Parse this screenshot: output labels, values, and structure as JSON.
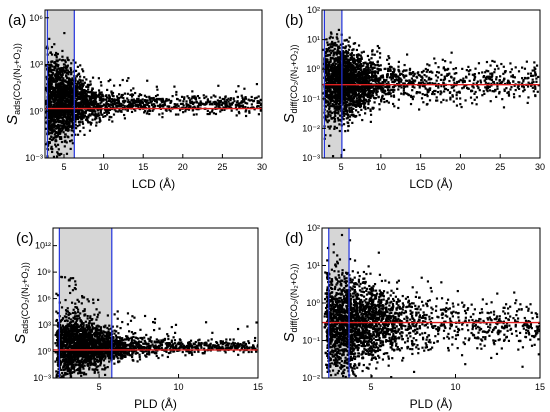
{
  "chart_data": [
    {
      "panel_label": "(a)",
      "type": "scatter",
      "xlabel": "LCD (Å)",
      "ylabel_main": "S",
      "ylabel_sub": "ads(CO₂/(N₂+O₂))",
      "x_scale": "linear",
      "y_scale": "log",
      "xlim": [
        2.6,
        30
      ],
      "ylim_log10": [
        -3,
        6.5
      ],
      "x_ticks": [
        5,
        10,
        15,
        20,
        25,
        30
      ],
      "x_tick_labels": [
        "5",
        "10",
        "15",
        "20",
        "25",
        "30"
      ],
      "y_ticks_log10": [
        -3,
        0,
        3,
        6
      ],
      "y_tick_labels": [
        "10⁻³",
        "10⁰",
        "10³",
        "10⁶"
      ],
      "shaded_region_x": [
        2.9,
        6.3
      ],
      "vertical_lines_x": [
        2.9,
        6.3
      ],
      "reference_line_y": 1.5,
      "scatter_shape": {
        "peak_x": 3.8,
        "spread_x": 2.6,
        "x_max": 30,
        "baseline_log10": 0.55,
        "baseline_slope": -0.005,
        "spread_near": 1.5,
        "spread_far": 0.28,
        "upper_tail_max_log10": 4.6,
        "n_points": 2600
      }
    },
    {
      "panel_label": "(b)",
      "type": "scatter",
      "xlabel": "LCD (Å)",
      "ylabel_main": "S",
      "ylabel_sub": "diff(CO₂/(N₂+O₂))",
      "x_scale": "linear",
      "y_scale": "log",
      "xlim": [
        2.6,
        30
      ],
      "ylim_log10": [
        -3,
        2
      ],
      "x_ticks": [
        5,
        10,
        15,
        20,
        25,
        30
      ],
      "x_tick_labels": [
        "5",
        "10",
        "15",
        "20",
        "25",
        "30"
      ],
      "y_ticks_log10": [
        -3,
        -2,
        -1,
        0,
        1,
        2
      ],
      "y_tick_labels": [
        "10⁻³",
        "10⁻²",
        "10⁻¹",
        "10⁰",
        "10¹",
        "10²"
      ],
      "shaded_region_x": [
        2.9,
        5.1
      ],
      "vertical_lines_x": [
        2.9,
        5.1
      ],
      "reference_line_y": 0.3,
      "scatter_shape": {
        "peak_x": 4.5,
        "spread_x": 2.8,
        "x_max": 30,
        "baseline_log10": -0.45,
        "baseline_slope": 0.0,
        "spread_near": 0.7,
        "spread_far": 0.32,
        "upper_tail_max_log10": 0.9,
        "n_points": 2600
      }
    },
    {
      "panel_label": "(c)",
      "type": "scatter",
      "xlabel": "PLD (Å)",
      "ylabel_main": "S",
      "ylabel_sub": "ads(CO₂/(N₂+O₂))",
      "x_scale": "linear",
      "y_scale": "log",
      "xlim": [
        2.1,
        15
      ],
      "ylim_log10": [
        -3,
        14
      ],
      "x_ticks": [
        5,
        10,
        15
      ],
      "x_tick_labels": [
        "5",
        "10",
        "15"
      ],
      "y_ticks_log10": [
        -3,
        0,
        3,
        6,
        9,
        12
      ],
      "y_tick_labels": [
        "10⁻³",
        "10⁰",
        "10³",
        "10⁶",
        "10⁹",
        "10¹²"
      ],
      "shaded_region_x": [
        2.5,
        5.8
      ],
      "vertical_lines_x": [
        2.5,
        5.8
      ],
      "reference_line_y": 1.5,
      "scatter_shape": {
        "peak_x": 3.3,
        "spread_x": 1.8,
        "x_max": 15,
        "baseline_log10": 0.6,
        "baseline_slope": -0.01,
        "spread_near": 1.8,
        "spread_far": 0.3,
        "upper_tail_max_log10": 8.5,
        "n_points": 2600
      }
    },
    {
      "panel_label": "(d)",
      "type": "scatter",
      "xlabel": "PLD (Å)",
      "ylabel_main": "S",
      "ylabel_sub": "diff(CO₂/(N₂+O₂))",
      "x_scale": "linear",
      "y_scale": "log",
      "xlim": [
        2.1,
        15
      ],
      "ylim_log10": [
        -2,
        2
      ],
      "x_ticks": [
        5,
        10,
        15
      ],
      "x_tick_labels": [
        "5",
        "10",
        "15"
      ],
      "y_ticks_log10": [
        -2,
        -1,
        0,
        1,
        2
      ],
      "y_tick_labels": [
        "10⁻²",
        "10⁻¹",
        "10⁰",
        "10¹",
        "10²"
      ],
      "shaded_region_x": [
        2.5,
        3.7
      ],
      "vertical_lines_x": [
        2.5,
        3.7
      ],
      "reference_line_y": 0.3,
      "scatter_shape": {
        "peak_x": 3.3,
        "spread_x": 1.9,
        "x_max": 15,
        "baseline_log10": -0.55,
        "baseline_slope": 0.0,
        "spread_near": 0.7,
        "spread_far": 0.32,
        "upper_tail_max_log10": 0.9,
        "n_points": 2600
      }
    }
  ],
  "style": {
    "point_color": "#000000",
    "shade_color": "#d6d6d6",
    "vertical_line_color": "#2233dd",
    "reference_line_color": "#e0201f",
    "axis_color": "#000000"
  }
}
